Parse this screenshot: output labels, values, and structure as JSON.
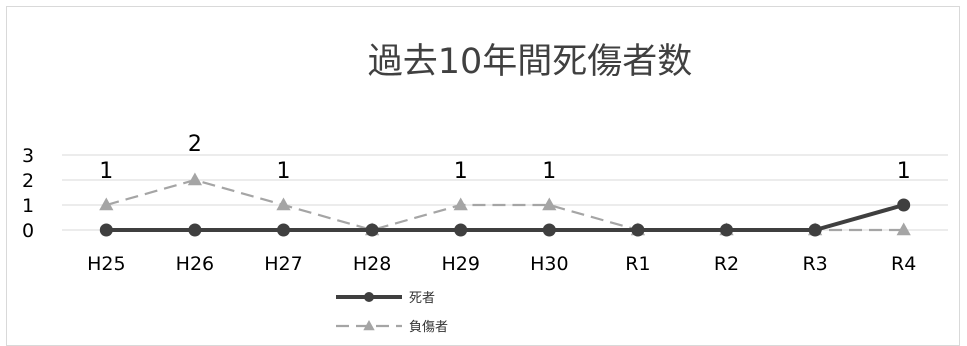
{
  "chart_data": {
    "type": "line",
    "title": "過去10年間死傷者数",
    "categories": [
      "H25",
      "H26",
      "H27",
      "H28",
      "H29",
      "H30",
      "R1",
      "R2",
      "R3",
      "R4"
    ],
    "series": [
      {
        "name": "死者",
        "values": [
          0,
          0,
          0,
          0,
          0,
          0,
          0,
          0,
          0,
          1
        ],
        "color": "#3f3f3f",
        "marker": "circle",
        "line": "solid"
      },
      {
        "name": "負傷者",
        "values": [
          1,
          2,
          1,
          0,
          1,
          1,
          0,
          0,
          0,
          0
        ],
        "color": "#a5a5a5",
        "marker": "triangle",
        "line": "dashed"
      }
    ],
    "data_labels": [
      "1",
      "2",
      "1",
      "",
      "1",
      "1",
      "",
      "",
      "",
      "1"
    ],
    "y_ticks": [
      "0",
      "1",
      "2",
      "3"
    ],
    "ylim": [
      0,
      3
    ],
    "grid": true,
    "legend_position": "bottom"
  }
}
